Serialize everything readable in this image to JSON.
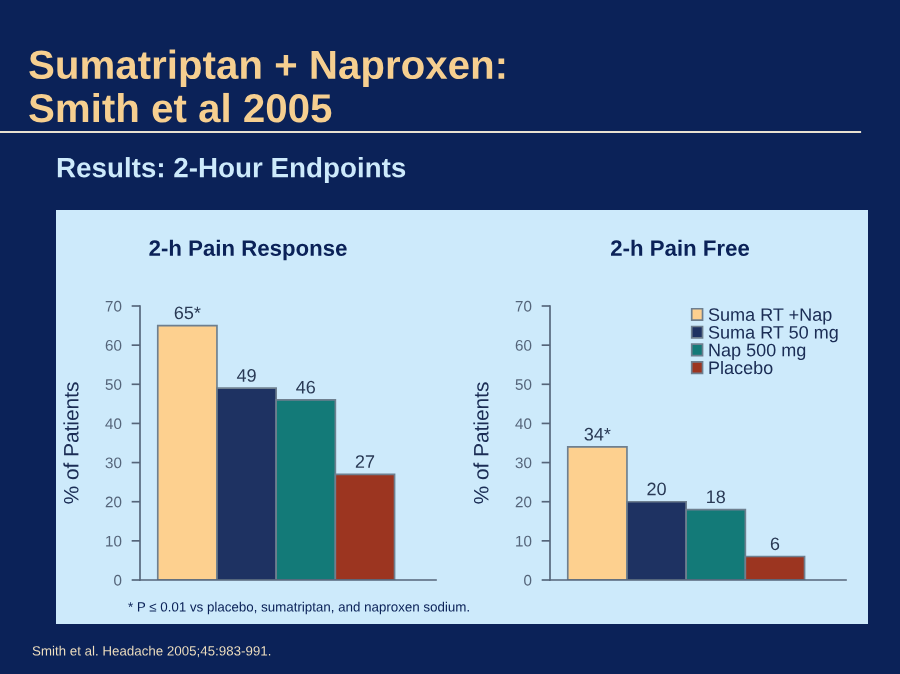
{
  "chart_data": [
    {
      "type": "bar",
      "title": "2-h Pain Response",
      "ylabel": "% of Patients",
      "categories": [
        null
      ],
      "series": [
        {
          "color": "#fdd08f",
          "values": [
            65
          ],
          "value_labels": [
            "65*"
          ]
        },
        {
          "color": "#1e3262",
          "values": [
            49
          ],
          "value_labels": [
            "49"
          ]
        },
        {
          "color": "#137a78",
          "values": [
            46
          ],
          "value_labels": [
            "46"
          ]
        },
        {
          "color": "#9c3520",
          "values": [
            27
          ],
          "value_labels": [
            "27"
          ]
        }
      ],
      "ylim": [
        0,
        70
      ],
      "yticks": [
        0,
        10,
        20,
        30,
        40,
        50,
        60,
        70
      ],
      "grid": false,
      "legend": false,
      "annotations": [
        "Sumatriptan + Naproxen:\nSmith et al 2005",
        "Results: 2-Hour Endpoints",
        "* P ≤ 0.01 vs placebo, sumatriptan, and naproxen sodium.",
        "Smith et al. Headache 2005;45:983-991."
      ]
    },
    {
      "type": "bar",
      "title": "2-h Pain Free",
      "ylabel": "% of Patients",
      "categories": [
        null
      ],
      "series": [
        {
          "name": "Suma RT +Nap",
          "color": "#fdd08f",
          "values": [
            34
          ],
          "value_labels": [
            "34*"
          ]
        },
        {
          "name": "Suma RT 50 mg",
          "color": "#1e3262",
          "values": [
            20
          ],
          "value_labels": [
            "20"
          ]
        },
        {
          "name": "Nap 500 mg",
          "color": "#137a78",
          "values": [
            18
          ],
          "value_labels": [
            "18"
          ]
        },
        {
          "name": "Placebo",
          "color": "#9c3520",
          "values": [
            6
          ],
          "value_labels": [
            "6"
          ]
        }
      ],
      "ylim": [
        0,
        70
      ],
      "yticks": [
        0,
        10,
        20,
        30,
        40,
        50,
        60,
        70
      ],
      "grid": false,
      "legend": "top right"
    }
  ]
}
